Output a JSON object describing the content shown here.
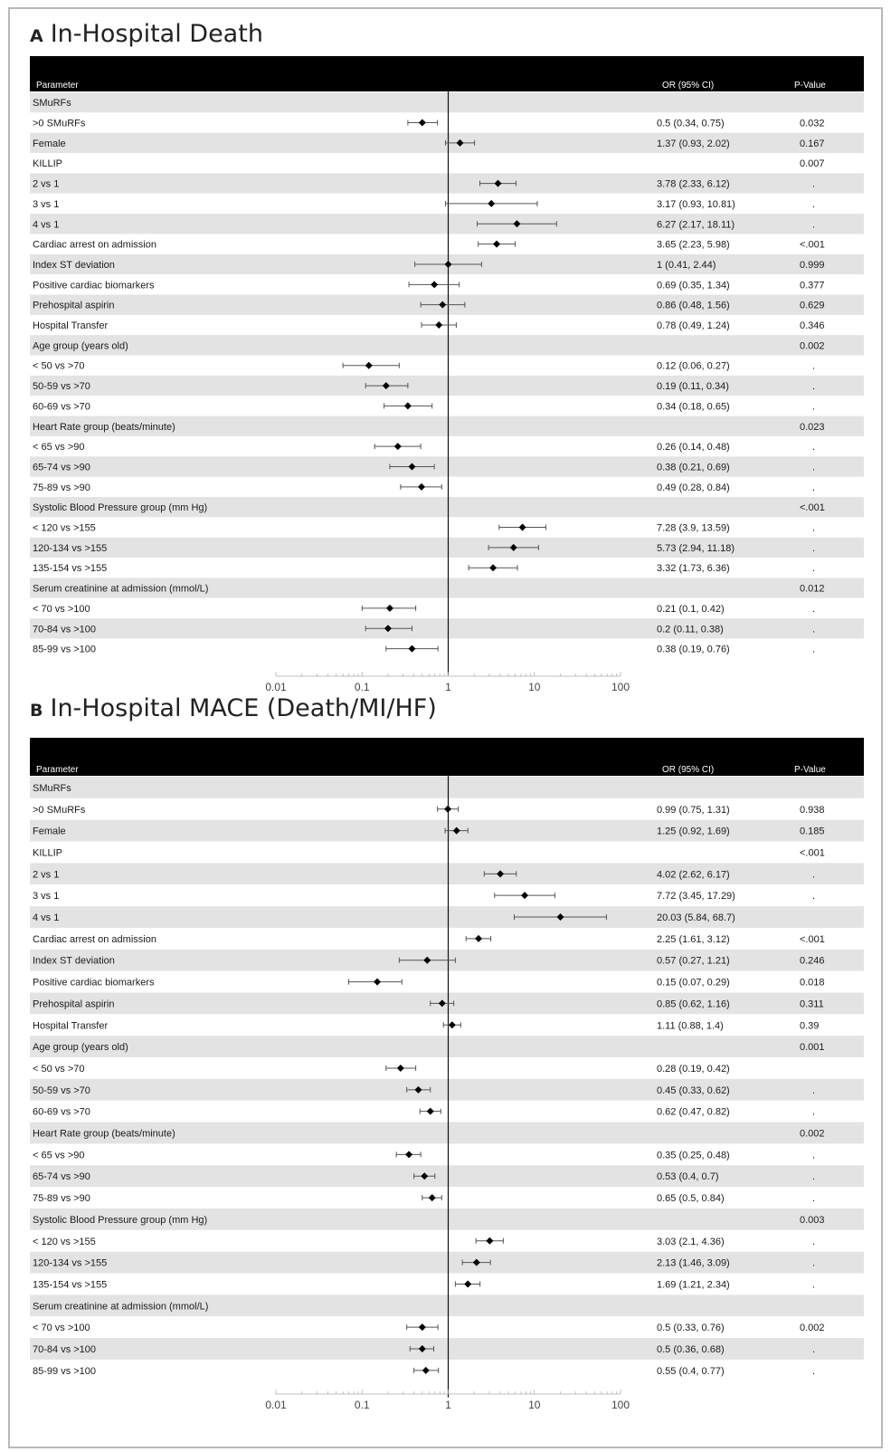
{
  "chart_data": [
    {
      "type": "forest",
      "panel_letter": "A",
      "title": "In-Hospital Death",
      "columns": {
        "parameter": "Parameter",
        "or_ci": "OR (95% CI)",
        "p": "P-Value"
      },
      "x_scale": "log",
      "xlim": [
        0.01,
        100
      ],
      "x_ticks": [
        "0.01",
        "0.1",
        "1",
        "10",
        "100"
      ],
      "reference_line": 1,
      "rows": [
        {
          "label": "SMuRFs",
          "or_text": "",
          "p": ""
        },
        {
          "label": ">0 SMuRFs",
          "or": 0.5,
          "lo": 0.34,
          "hi": 0.75,
          "or_text": "0.5 (0.34, 0.75)",
          "p": "0.032"
        },
        {
          "label": "Female",
          "or": 1.37,
          "lo": 0.93,
          "hi": 2.02,
          "or_text": "1.37 (0.93, 2.02)",
          "p": "0.167"
        },
        {
          "label": "KILLIP",
          "or_text": "",
          "p": "0.007"
        },
        {
          "label": "2 vs 1",
          "or": 3.78,
          "lo": 2.33,
          "hi": 6.12,
          "or_text": "3.78 (2.33, 6.12)",
          "p": "."
        },
        {
          "label": "3 vs 1",
          "or": 3.17,
          "lo": 0.93,
          "hi": 10.81,
          "or_text": "3.17 (0.93, 10.81)",
          "p": "."
        },
        {
          "label": "4 vs 1",
          "or": 6.27,
          "lo": 2.17,
          "hi": 18.11,
          "or_text": "6.27 (2.17, 18.11)",
          "p": "."
        },
        {
          "label": "Cardiac arrest on admission",
          "or": 3.65,
          "lo": 2.23,
          "hi": 5.98,
          "or_text": "3.65 (2.23, 5.98)",
          "p": "<.001"
        },
        {
          "label": "Index ST deviation",
          "or": 1,
          "lo": 0.41,
          "hi": 2.44,
          "or_text": "1 (0.41, 2.44)",
          "p": "0.999"
        },
        {
          "label": "Positive cardiac biomarkers",
          "or": 0.69,
          "lo": 0.35,
          "hi": 1.34,
          "or_text": "0.69 (0.35, 1.34)",
          "p": "0.377"
        },
        {
          "label": "Prehospital aspirin",
          "or": 0.86,
          "lo": 0.48,
          "hi": 1.56,
          "or_text": "0.86 (0.48, 1.56)",
          "p": "0.629"
        },
        {
          "label": "Hospital Transfer",
          "or": 0.78,
          "lo": 0.49,
          "hi": 1.24,
          "or_text": "0.78 (0.49, 1.24)",
          "p": "0.346"
        },
        {
          "label": "Age group (years old)",
          "or_text": "",
          "p": "0.002"
        },
        {
          "label": "< 50 vs >70",
          "or": 0.12,
          "lo": 0.06,
          "hi": 0.27,
          "or_text": "0.12 (0.06, 0.27)",
          "p": "."
        },
        {
          "label": "50-59 vs >70",
          "or": 0.19,
          "lo": 0.11,
          "hi": 0.34,
          "or_text": "0.19 (0.11, 0.34)",
          "p": "."
        },
        {
          "label": "60-69 vs >70",
          "or": 0.34,
          "lo": 0.18,
          "hi": 0.65,
          "or_text": "0.34 (0.18, 0.65)",
          "p": "."
        },
        {
          "label": "Heart Rate group (beats/minute)",
          "or_text": "",
          "p": "0.023"
        },
        {
          "label": "< 65 vs >90",
          "or": 0.26,
          "lo": 0.14,
          "hi": 0.48,
          "or_text": "0.26 (0.14, 0.48)",
          "p": "."
        },
        {
          "label": "65-74 vs >90",
          "or": 0.38,
          "lo": 0.21,
          "hi": 0.69,
          "or_text": "0.38 (0.21, 0.69)",
          "p": "."
        },
        {
          "label": "75-89 vs >90",
          "or": 0.49,
          "lo": 0.28,
          "hi": 0.84,
          "or_text": "0.49 (0.28, 0.84)",
          "p": "."
        },
        {
          "label": "Systolic Blood Pressure group (mm Hg)",
          "or_text": "",
          "p": "<.001"
        },
        {
          "label": "< 120 vs >155",
          "or": 7.28,
          "lo": 3.9,
          "hi": 13.59,
          "or_text": "7.28 (3.9, 13.59)",
          "p": "."
        },
        {
          "label": "120-134 vs >155",
          "or": 5.73,
          "lo": 2.94,
          "hi": 11.18,
          "or_text": "5.73 (2.94, 11.18)",
          "p": "."
        },
        {
          "label": "135-154 vs >155",
          "or": 3.32,
          "lo": 1.73,
          "hi": 6.36,
          "or_text": "3.32 (1.73, 6.36)",
          "p": "."
        },
        {
          "label": "Serum creatinine at admission (mmol/L)",
          "or_text": "",
          "p": "0.012"
        },
        {
          "label": "< 70 vs >100",
          "or": 0.21,
          "lo": 0.1,
          "hi": 0.42,
          "or_text": "0.21 (0.1, 0.42)",
          "p": "."
        },
        {
          "label": "70-84 vs >100",
          "or": 0.2,
          "lo": 0.11,
          "hi": 0.38,
          "or_text": "0.2 (0.11, 0.38)",
          "p": "."
        },
        {
          "label": "85-99 vs >100",
          "or": 0.38,
          "lo": 0.19,
          "hi": 0.76,
          "or_text": "0.38 (0.19, 0.76)",
          "p": "."
        }
      ]
    },
    {
      "type": "forest",
      "panel_letter": "B",
      "title": "In-Hospital MACE (Death/MI/HF)",
      "columns": {
        "parameter": "Parameter",
        "or_ci": "OR (95% CI)",
        "p": "P-Value"
      },
      "x_scale": "log",
      "xlim": [
        0.01,
        100
      ],
      "x_ticks": [
        "0.01",
        "0.1",
        "1",
        "10",
        "100"
      ],
      "reference_line": 1,
      "rows": [
        {
          "label": "SMuRFs",
          "or_text": "",
          "p": ""
        },
        {
          "label": ">0 SMuRFs",
          "or": 0.99,
          "lo": 0.75,
          "hi": 1.31,
          "or_text": "0.99 (0.75, 1.31)",
          "p": "0.938"
        },
        {
          "label": "Female",
          "or": 1.25,
          "lo": 0.92,
          "hi": 1.69,
          "or_text": "1.25 (0.92, 1.69)",
          "p": "0.185"
        },
        {
          "label": "KILLIP",
          "or_text": "",
          "p": "<.001"
        },
        {
          "label": "2 vs 1",
          "or": 4.02,
          "lo": 2.62,
          "hi": 6.17,
          "or_text": "4.02 (2.62, 6.17)",
          "p": "."
        },
        {
          "label": "3 vs 1",
          "or": 7.72,
          "lo": 3.45,
          "hi": 17.29,
          "or_text": "7.72 (3.45, 17.29)",
          "p": "."
        },
        {
          "label": "4 vs 1",
          "or": 20.03,
          "lo": 5.84,
          "hi": 68.7,
          "or_text": "20.03 (5.84, 68.7)",
          "p": ""
        },
        {
          "label": "Cardiac arrest on admission",
          "or": 2.25,
          "lo": 1.61,
          "hi": 3.12,
          "or_text": "2.25 (1.61, 3.12)",
          "p": "<.001"
        },
        {
          "label": "Index ST deviation",
          "or": 0.57,
          "lo": 0.27,
          "hi": 1.21,
          "or_text": "0.57 (0.27, 1.21)",
          "p": "0.246"
        },
        {
          "label": "Positive cardiac biomarkers",
          "or": 0.15,
          "lo": 0.07,
          "hi": 0.29,
          "or_text": "0.15 (0.07, 0.29)",
          "p": "0.018"
        },
        {
          "label": "Prehospital aspirin",
          "or": 0.85,
          "lo": 0.62,
          "hi": 1.16,
          "or_text": "0.85 (0.62, 1.16)",
          "p": "0.311"
        },
        {
          "label": "Hospital Transfer",
          "or": 1.11,
          "lo": 0.88,
          "hi": 1.4,
          "or_text": "1.11 (0.88, 1.4)",
          "p": "0.39"
        },
        {
          "label": "Age group (years old)",
          "or_text": "",
          "p": "0.001"
        },
        {
          "label": "< 50 vs >70",
          "or": 0.28,
          "lo": 0.19,
          "hi": 0.42,
          "or_text": "0.28 (0.19, 0.42)",
          "p": ""
        },
        {
          "label": "50-59 vs >70",
          "or": 0.45,
          "lo": 0.33,
          "hi": 0.62,
          "or_text": "0.45 (0.33, 0.62)",
          "p": "."
        },
        {
          "label": "60-69 vs >70",
          "or": 0.62,
          "lo": 0.47,
          "hi": 0.82,
          "or_text": "0.62 (0.47, 0.82)",
          "p": "."
        },
        {
          "label": "Heart Rate group (beats/minute)",
          "or_text": "",
          "p": "0.002"
        },
        {
          "label": "< 65 vs >90",
          "or": 0.35,
          "lo": 0.25,
          "hi": 0.48,
          "or_text": "0.35 (0.25, 0.48)",
          "p": "."
        },
        {
          "label": "65-74 vs >90",
          "or": 0.53,
          "lo": 0.4,
          "hi": 0.7,
          "or_text": "0.53 (0.4, 0.7)",
          "p": "."
        },
        {
          "label": "75-89 vs >90",
          "or": 0.65,
          "lo": 0.5,
          "hi": 0.84,
          "or_text": "0.65 (0.5, 0.84)",
          "p": "."
        },
        {
          "label": "Systolic Blood Pressure group (mm Hg)",
          "or_text": "",
          "p": "0.003"
        },
        {
          "label": "< 120 vs >155",
          "or": 3.03,
          "lo": 2.1,
          "hi": 4.36,
          "or_text": "3.03 (2.1, 4.36)",
          "p": "."
        },
        {
          "label": "120-134 vs >155",
          "or": 2.13,
          "lo": 1.46,
          "hi": 3.09,
          "or_text": "2.13 (1.46, 3.09)",
          "p": "."
        },
        {
          "label": "135-154 vs >155",
          "or": 1.69,
          "lo": 1.21,
          "hi": 2.34,
          "or_text": "1.69 (1.21, 2.34)",
          "p": "."
        },
        {
          "label": "Serum creatinine at admission (mmol/L)",
          "or_text": "",
          "p": ""
        },
        {
          "label": "< 70 vs >100",
          "or": 0.5,
          "lo": 0.33,
          "hi": 0.76,
          "or_text": "0.5 (0.33, 0.76)",
          "p": "0.002"
        },
        {
          "label": "70-84 vs >100",
          "or": 0.5,
          "lo": 0.36,
          "hi": 0.68,
          "or_text": "0.5 (0.36, 0.68)",
          "p": "."
        },
        {
          "label": "85-99 vs >100",
          "or": 0.55,
          "lo": 0.4,
          "hi": 0.77,
          "or_text": "0.55 (0.4, 0.77)",
          "p": "."
        }
      ]
    }
  ]
}
